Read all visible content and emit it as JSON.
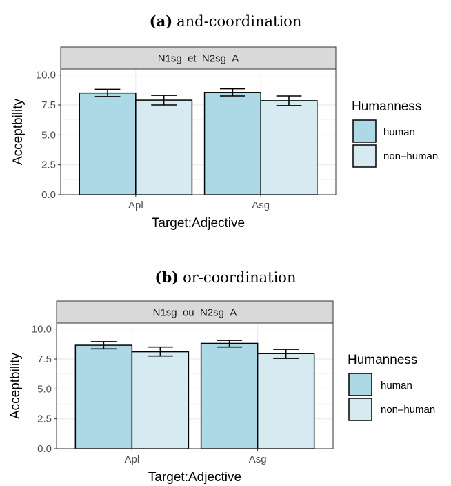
{
  "chart_data": [
    {
      "type": "bar",
      "caption_label": "(a)",
      "caption_text": "and-coordination",
      "facet": "N1sg–et–N2sg–A",
      "xlabel": "Target:Adjective",
      "ylabel": "Acceptbility",
      "ylim": [
        0,
        10.5
      ],
      "yticks": [
        "0.0",
        "2.5",
        "5.0",
        "7.5",
        "10.0"
      ],
      "categories": [
        "Apl",
        "Asg"
      ],
      "series": [
        {
          "name": "human",
          "values": [
            8.5,
            8.55
          ],
          "err_low": [
            8.2,
            8.25
          ],
          "err_high": [
            8.8,
            8.85
          ]
        },
        {
          "name": "non–human",
          "values": [
            7.9,
            7.85
          ],
          "err_low": [
            7.5,
            7.45
          ],
          "err_high": [
            8.3,
            8.25
          ]
        }
      ],
      "legend_title": "Humanness",
      "legend_position": "right",
      "grid": true
    },
    {
      "type": "bar",
      "caption_label": "(b)",
      "caption_text": "or-coordination",
      "facet": "N1sg–ou–N2sg–A",
      "xlabel": "Target:Adjective",
      "ylabel": "Acceptbility",
      "ylim": [
        0,
        10.5
      ],
      "yticks": [
        "0.0",
        "2.5",
        "5.0",
        "7.5",
        "10.0"
      ],
      "categories": [
        "Apl",
        "Asg"
      ],
      "series": [
        {
          "name": "human",
          "values": [
            8.65,
            8.8
          ],
          "err_low": [
            8.35,
            8.5
          ],
          "err_high": [
            8.95,
            9.05
          ]
        },
        {
          "name": "non–human",
          "values": [
            8.1,
            7.95
          ],
          "err_low": [
            7.75,
            7.55
          ],
          "err_high": [
            8.5,
            8.3
          ]
        }
      ],
      "legend_title": "Humanness",
      "legend_position": "right",
      "grid": true
    }
  ],
  "colors": {
    "human": "#add8e6",
    "non_human": "#d6ebf1",
    "strip": "#d9d9d9",
    "grid_major": "#ebebeb",
    "grid_minor": "#f5f5f5"
  }
}
